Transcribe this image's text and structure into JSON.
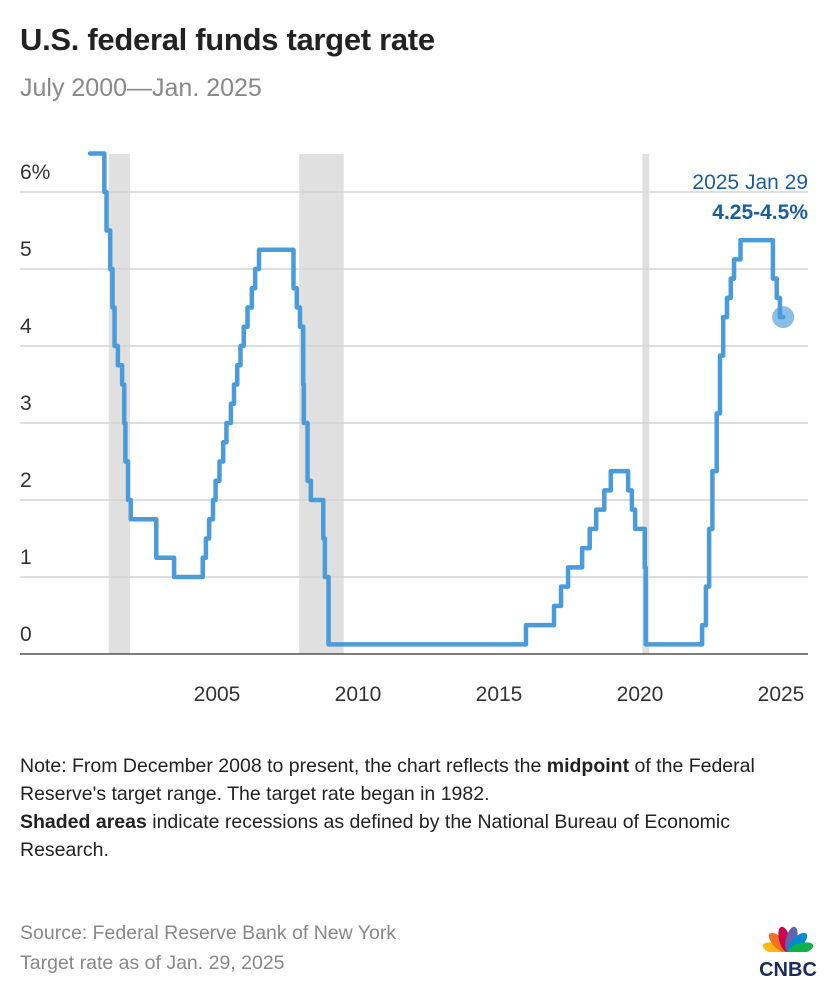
{
  "header": {
    "title": "U.S. federal funds target rate",
    "subtitle": "July 2000—Jan. 2025"
  },
  "chart_data": {
    "type": "line",
    "step": true,
    "ylim": [
      0,
      6.5
    ],
    "xlim": [
      "2000-07-01",
      "2025-01-29"
    ],
    "y_ticks": [
      0,
      1,
      2,
      3,
      4,
      5,
      6
    ],
    "y_tick_labels": [
      "0",
      "1",
      "2",
      "3",
      "4",
      "5",
      "6%"
    ],
    "x_ticks": [
      2005,
      2010,
      2015,
      2020,
      2025
    ],
    "x_tick_labels": [
      "2005",
      "2010",
      "2015",
      "2020",
      "2025"
    ],
    "grid": "horizontal",
    "line_color": "#4a9bd9",
    "annotation_color": "#1b5e9b",
    "recession_color": "#e0e0e0",
    "annotation": {
      "date_label": "2025 Jan 29",
      "value_label": "4.25-4.5%"
    },
    "recessions": [
      [
        "2001-03-01",
        "2001-11-30"
      ],
      [
        "2007-12-01",
        "2009-06-30"
      ],
      [
        "2020-02-01",
        "2020-04-30"
      ]
    ],
    "series": [
      {
        "points": [
          [
            "2000-07-01",
            6.5
          ],
          [
            "2001-01-03",
            6.0
          ],
          [
            "2001-01-31",
            5.5
          ],
          [
            "2001-03-20",
            5.0
          ],
          [
            "2001-04-18",
            4.5
          ],
          [
            "2001-05-15",
            4.0
          ],
          [
            "2001-06-27",
            3.75
          ],
          [
            "2001-08-21",
            3.5
          ],
          [
            "2001-09-17",
            3.0
          ],
          [
            "2001-10-02",
            2.5
          ],
          [
            "2001-11-06",
            2.0
          ],
          [
            "2001-12-11",
            1.75
          ],
          [
            "2002-11-06",
            1.25
          ],
          [
            "2003-06-25",
            1.0
          ],
          [
            "2004-06-30",
            1.25
          ],
          [
            "2004-08-10",
            1.5
          ],
          [
            "2004-09-21",
            1.75
          ],
          [
            "2004-11-10",
            2.0
          ],
          [
            "2004-12-14",
            2.25
          ],
          [
            "2005-02-02",
            2.5
          ],
          [
            "2005-03-22",
            2.75
          ],
          [
            "2005-05-03",
            3.0
          ],
          [
            "2005-06-30",
            3.25
          ],
          [
            "2005-08-09",
            3.5
          ],
          [
            "2005-09-20",
            3.75
          ],
          [
            "2005-11-01",
            4.0
          ],
          [
            "2005-12-13",
            4.25
          ],
          [
            "2006-01-31",
            4.5
          ],
          [
            "2006-03-28",
            4.75
          ],
          [
            "2006-05-10",
            5.0
          ],
          [
            "2006-06-29",
            5.25
          ],
          [
            "2007-09-18",
            4.75
          ],
          [
            "2007-10-31",
            4.5
          ],
          [
            "2007-12-11",
            4.25
          ],
          [
            "2008-01-22",
            3.5
          ],
          [
            "2008-01-30",
            3.0
          ],
          [
            "2008-03-18",
            2.25
          ],
          [
            "2008-04-30",
            2.0
          ],
          [
            "2008-10-08",
            1.5
          ],
          [
            "2008-10-29",
            1.0
          ],
          [
            "2008-12-16",
            0.125
          ],
          [
            "2015-12-16",
            0.375
          ],
          [
            "2016-12-14",
            0.625
          ],
          [
            "2017-03-15",
            0.875
          ],
          [
            "2017-06-14",
            1.125
          ],
          [
            "2017-12-13",
            1.375
          ],
          [
            "2018-03-21",
            1.625
          ],
          [
            "2018-06-13",
            1.875
          ],
          [
            "2018-09-26",
            2.125
          ],
          [
            "2018-12-19",
            2.375
          ],
          [
            "2019-07-31",
            2.125
          ],
          [
            "2019-09-18",
            1.875
          ],
          [
            "2019-10-30",
            1.625
          ],
          [
            "2020-03-03",
            1.125
          ],
          [
            "2020-03-15",
            0.125
          ],
          [
            "2022-03-16",
            0.375
          ],
          [
            "2022-05-04",
            0.875
          ],
          [
            "2022-06-15",
            1.625
          ],
          [
            "2022-07-27",
            2.375
          ],
          [
            "2022-09-21",
            3.125
          ],
          [
            "2022-11-02",
            3.875
          ],
          [
            "2022-12-14",
            4.375
          ],
          [
            "2023-02-01",
            4.625
          ],
          [
            "2023-03-22",
            4.875
          ],
          [
            "2023-05-03",
            5.125
          ],
          [
            "2023-07-26",
            5.375
          ],
          [
            "2024-09-18",
            4.875
          ],
          [
            "2024-11-07",
            4.625
          ],
          [
            "2024-12-18",
            4.375
          ],
          [
            "2025-01-29",
            4.375
          ]
        ]
      }
    ]
  },
  "footer": {
    "note_line1_pre": "Note: From December 2008 to present, the chart reflects the ",
    "note_bold1": "midpoint",
    "note_line1_post": " of the Federal Reserve's target range. The target rate began in 1982.",
    "note_bold2": "Shaded areas",
    "note_line2_post": " indicate recessions as defined by the National Bureau of Economic Research.",
    "source": "Source: Federal Reserve Bank of New York",
    "asof": "Target rate as of Jan. 29, 2025",
    "logo": "CNBC"
  }
}
